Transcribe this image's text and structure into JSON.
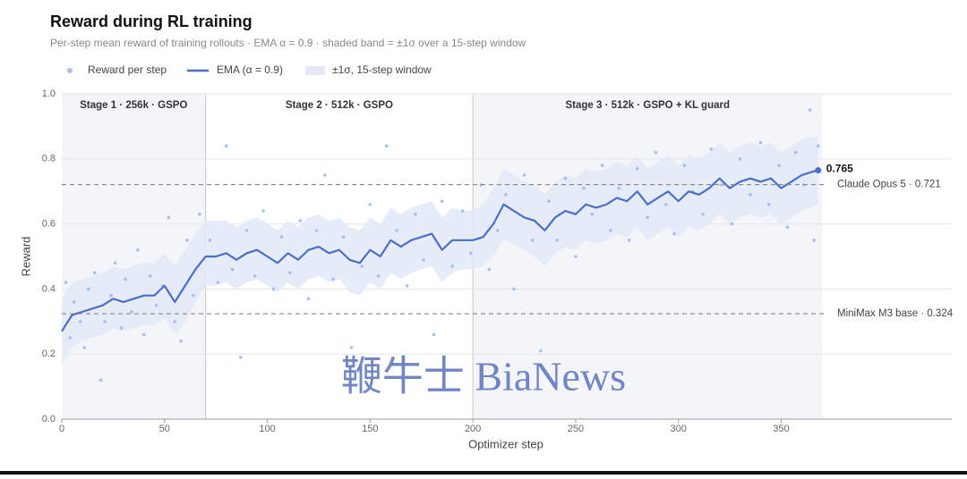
{
  "chart_data": {
    "type": "line",
    "title": "Reward during RL training",
    "subtitle": "Per-step mean reward of training rollouts · EMA α = 0.9 · shaded band = ±1σ over a 15-step window",
    "x_label": "Optimizer step",
    "y_label": "Reward",
    "xlim": [
      0,
      433
    ],
    "ylim": [
      0,
      1
    ],
    "xticks": [
      0,
      50,
      100,
      150,
      200,
      250,
      300,
      350
    ],
    "yticks": [
      {
        "value": 0,
        "label": "0.0"
      },
      0.2,
      0.4,
      0.6,
      0.8,
      {
        "value": 1,
        "label": "1.0"
      }
    ],
    "grid": true,
    "legend": "top-left",
    "watermark": "鞭牛士 BiaNews",
    "stages": [
      {
        "label": "Stage 1 · 256k · GSPO",
        "start": 0,
        "end": 70,
        "shaded": true
      },
      {
        "label": "Stage 2 · 512k · GSPO",
        "start": 70,
        "end": 200,
        "shaded": false
      },
      {
        "label": "Stage 3 · 512k · GSPO + KL guard",
        "start": 200,
        "end": 370,
        "shaded": true
      }
    ],
    "reference_lines": [
      {
        "label": "Claude Opus 5 · 0.721",
        "value": 0.721
      },
      {
        "label": "MiniMax M3 base · 0.324",
        "value": 0.324
      }
    ],
    "series": [
      {
        "name": "Reward per step",
        "kind": "scatter",
        "color": "#a9bdf0",
        "x": [
          2,
          4,
          6,
          9,
          11,
          13,
          16,
          19,
          21,
          24,
          26,
          29,
          31,
          34,
          37,
          40,
          43,
          46,
          49,
          52,
          55,
          58,
          61,
          64,
          67,
          72,
          76,
          80,
          83,
          87,
          90,
          94,
          98,
          103,
          107,
          111,
          116,
          120,
          124,
          128,
          132,
          137,
          141,
          146,
          150,
          154,
          158,
          163,
          168,
          172,
          176,
          181,
          185,
          190,
          195,
          199,
          204,
          208,
          212,
          216,
          220,
          225,
          229,
          233,
          237,
          241,
          245,
          250,
          254,
          258,
          263,
          267,
          271,
          276,
          280,
          285,
          289,
          294,
          298,
          303,
          307,
          312,
          316,
          321,
          326,
          330,
          335,
          340,
          344,
          349,
          353,
          357,
          361,
          364,
          366,
          368
        ],
        "values": [
          0.42,
          0.25,
          0.36,
          0.3,
          0.22,
          0.4,
          0.45,
          0.12,
          0.3,
          0.38,
          0.48,
          0.28,
          0.43,
          0.33,
          0.52,
          0.26,
          0.44,
          0.35,
          0.41,
          0.62,
          0.3,
          0.24,
          0.55,
          0.38,
          0.63,
          0.55,
          0.42,
          0.84,
          0.46,
          0.19,
          0.58,
          0.44,
          0.64,
          0.4,
          0.56,
          0.45,
          0.61,
          0.37,
          0.58,
          0.75,
          0.43,
          0.56,
          0.22,
          0.47,
          0.66,
          0.44,
          0.84,
          0.58,
          0.41,
          0.63,
          0.49,
          0.26,
          0.67,
          0.47,
          0.64,
          0.51,
          0.72,
          0.46,
          0.58,
          0.69,
          0.4,
          0.75,
          0.55,
          0.21,
          0.67,
          0.55,
          0.74,
          0.5,
          0.71,
          0.63,
          0.78,
          0.58,
          0.71,
          0.55,
          0.77,
          0.62,
          0.82,
          0.66,
          0.57,
          0.78,
          0.7,
          0.63,
          0.83,
          0.72,
          0.6,
          0.8,
          0.69,
          0.85,
          0.66,
          0.78,
          0.59,
          0.82,
          0.72,
          0.95,
          0.55,
          0.84
        ]
      },
      {
        "name": "EMA (α = 0.9)",
        "kind": "line",
        "color": "#4a6fc9",
        "last_label": "0.765",
        "x": [
          0,
          5,
          10,
          15,
          20,
          25,
          30,
          35,
          40,
          45,
          50,
          55,
          60,
          65,
          70,
          75,
          80,
          85,
          90,
          95,
          100,
          105,
          110,
          115,
          120,
          125,
          130,
          135,
          140,
          145,
          150,
          155,
          160,
          165,
          170,
          175,
          180,
          185,
          190,
          195,
          200,
          205,
          210,
          215,
          220,
          225,
          230,
          235,
          240,
          245,
          250,
          255,
          260,
          265,
          270,
          275,
          280,
          285,
          290,
          295,
          300,
          305,
          310,
          315,
          320,
          325,
          330,
          335,
          340,
          345,
          350,
          355,
          360,
          365,
          368
        ],
        "values": [
          0.27,
          0.32,
          0.33,
          0.34,
          0.35,
          0.37,
          0.36,
          0.37,
          0.38,
          0.38,
          0.41,
          0.36,
          0.41,
          0.46,
          0.5,
          0.5,
          0.51,
          0.49,
          0.51,
          0.52,
          0.5,
          0.48,
          0.51,
          0.49,
          0.52,
          0.53,
          0.51,
          0.52,
          0.49,
          0.48,
          0.52,
          0.5,
          0.55,
          0.53,
          0.55,
          0.56,
          0.57,
          0.52,
          0.55,
          0.55,
          0.55,
          0.56,
          0.6,
          0.66,
          0.64,
          0.62,
          0.61,
          0.58,
          0.62,
          0.64,
          0.63,
          0.66,
          0.65,
          0.66,
          0.68,
          0.67,
          0.7,
          0.66,
          0.68,
          0.7,
          0.67,
          0.7,
          0.69,
          0.71,
          0.74,
          0.71,
          0.73,
          0.74,
          0.73,
          0.74,
          0.71,
          0.73,
          0.75,
          0.76,
          0.765
        ]
      },
      {
        "name": "±1σ, 15-step window",
        "kind": "band",
        "color": "#e3e9f8",
        "x": [
          0,
          5,
          10,
          15,
          20,
          25,
          30,
          35,
          40,
          45,
          50,
          55,
          60,
          65,
          70,
          75,
          80,
          85,
          90,
          95,
          100,
          105,
          110,
          115,
          120,
          125,
          130,
          135,
          140,
          145,
          150,
          155,
          160,
          165,
          170,
          175,
          180,
          185,
          190,
          195,
          200,
          205,
          210,
          215,
          220,
          225,
          230,
          235,
          240,
          245,
          250,
          255,
          260,
          265,
          270,
          275,
          280,
          285,
          290,
          295,
          300,
          305,
          310,
          315,
          320,
          325,
          330,
          335,
          340,
          345,
          350,
          355,
          360,
          365,
          368
        ],
        "lower": [
          0.17,
          0.22,
          0.24,
          0.25,
          0.26,
          0.28,
          0.27,
          0.28,
          0.29,
          0.29,
          0.31,
          0.26,
          0.3,
          0.36,
          0.41,
          0.41,
          0.42,
          0.4,
          0.42,
          0.43,
          0.41,
          0.39,
          0.42,
          0.4,
          0.43,
          0.44,
          0.42,
          0.43,
          0.39,
          0.38,
          0.42,
          0.4,
          0.45,
          0.43,
          0.45,
          0.46,
          0.47,
          0.42,
          0.45,
          0.46,
          0.46,
          0.47,
          0.5,
          0.55,
          0.54,
          0.52,
          0.5,
          0.47,
          0.51,
          0.53,
          0.52,
          0.55,
          0.54,
          0.55,
          0.57,
          0.56,
          0.59,
          0.55,
          0.57,
          0.59,
          0.56,
          0.59,
          0.58,
          0.6,
          0.63,
          0.6,
          0.62,
          0.63,
          0.62,
          0.63,
          0.6,
          0.62,
          0.64,
          0.65,
          0.66
        ],
        "upper": [
          0.37,
          0.42,
          0.43,
          0.44,
          0.45,
          0.47,
          0.46,
          0.47,
          0.48,
          0.48,
          0.51,
          0.47,
          0.52,
          0.57,
          0.61,
          0.61,
          0.61,
          0.59,
          0.61,
          0.62,
          0.6,
          0.58,
          0.61,
          0.59,
          0.62,
          0.63,
          0.61,
          0.62,
          0.59,
          0.58,
          0.62,
          0.6,
          0.65,
          0.63,
          0.65,
          0.66,
          0.67,
          0.62,
          0.65,
          0.64,
          0.64,
          0.66,
          0.71,
          0.77,
          0.75,
          0.73,
          0.72,
          0.69,
          0.73,
          0.75,
          0.74,
          0.77,
          0.76,
          0.77,
          0.79,
          0.78,
          0.81,
          0.77,
          0.79,
          0.81,
          0.78,
          0.81,
          0.8,
          0.82,
          0.85,
          0.82,
          0.84,
          0.85,
          0.84,
          0.85,
          0.82,
          0.84,
          0.86,
          0.87,
          0.87
        ]
      }
    ]
  }
}
